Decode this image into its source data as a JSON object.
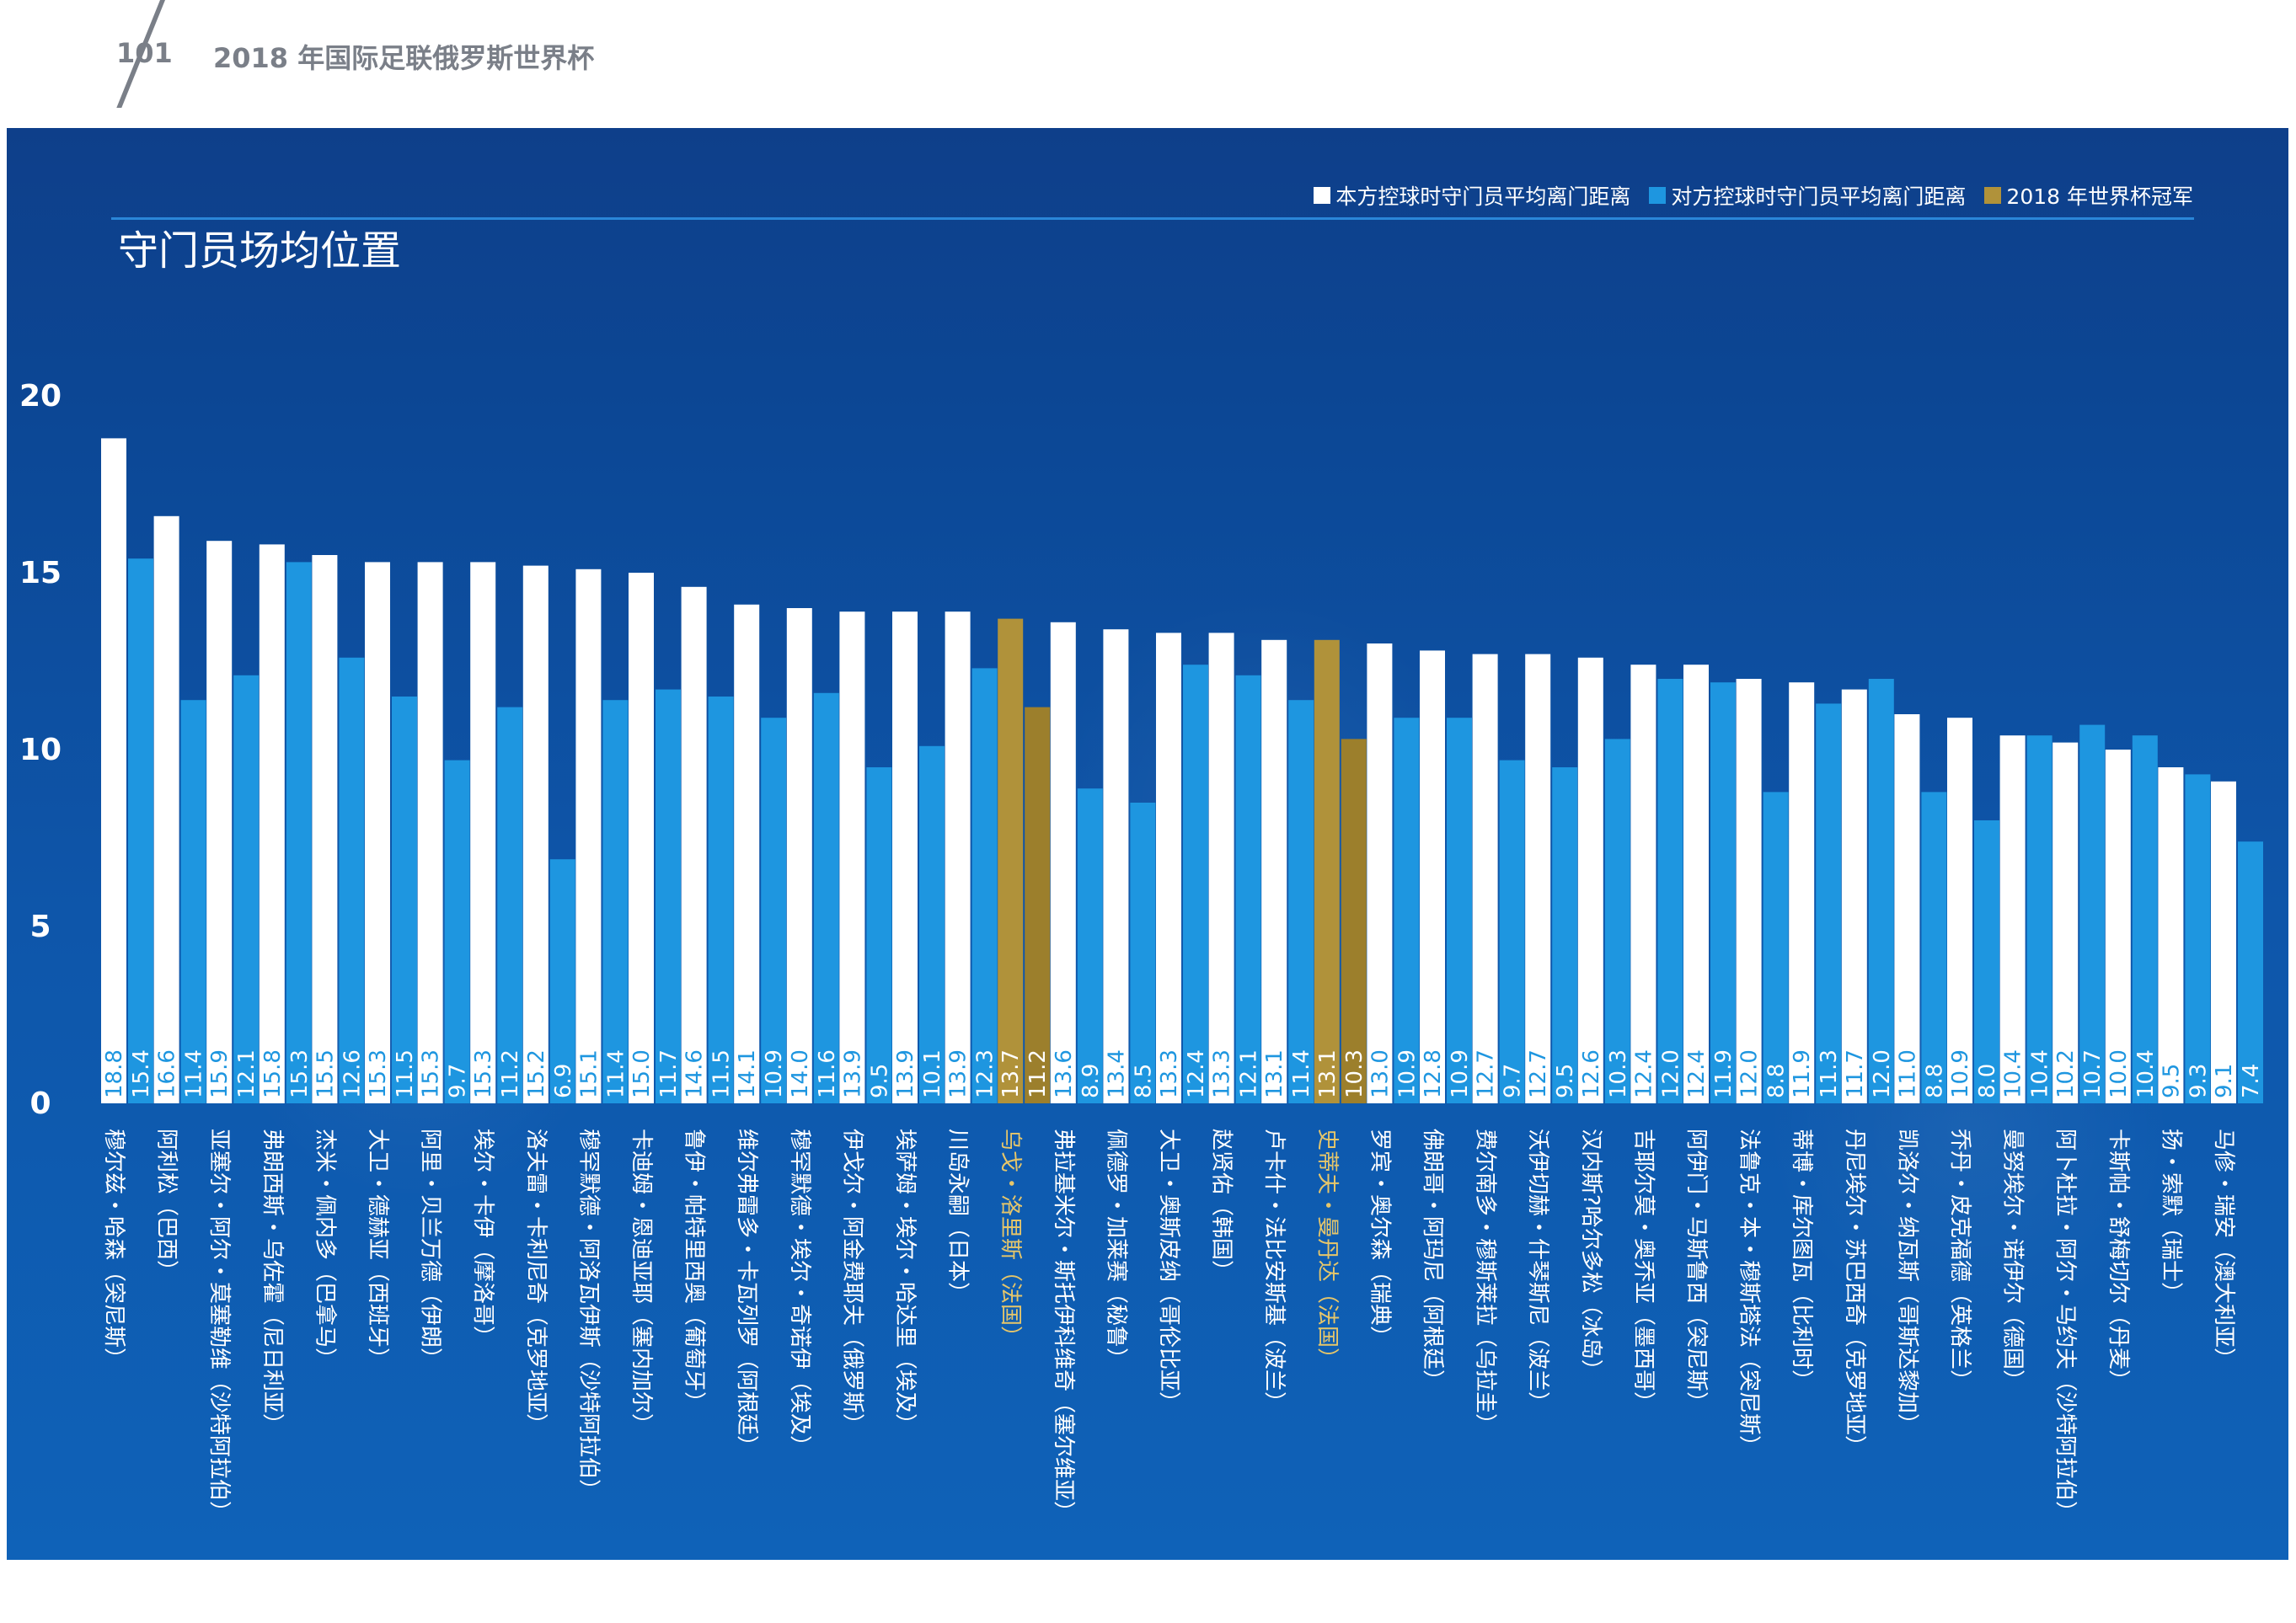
{
  "page": {
    "number": "101",
    "header_title": "2018 年国际足联俄罗斯世界杯"
  },
  "legend": [
    {
      "label": "本方控球时守门员平均离门距离",
      "color": "#ffffff"
    },
    {
      "label": "对方控球时守门员平均离门距离",
      "color": "#1e96e0"
    },
    {
      "label": "2018 年世界杯冠军",
      "color": "#b0923a"
    }
  ],
  "colors": {
    "own": "#ffffff",
    "opp": "#1e96e0",
    "champion": "#b0923a",
    "champion_dark": "#9c7f2c",
    "champion_label": "#e6c66a",
    "own_value_label": "#1e96e0",
    "opp_value_label": "#ffffff"
  },
  "chart_data": {
    "type": "bar",
    "title": "守门员场均位置",
    "ylim": [
      0,
      20
    ],
    "yticks": [
      0,
      5,
      10,
      15,
      20
    ],
    "series": [
      {
        "name": "本方控球时守门员平均离门距离",
        "values": [
          18.8,
          16.6,
          15.9,
          15.8,
          15.5,
          15.3,
          15.3,
          15.3,
          15.2,
          15.1,
          15.0,
          14.6,
          14.1,
          14.0,
          13.9,
          13.9,
          13.9,
          13.7,
          13.6,
          13.4,
          13.3,
          13.3,
          13.1,
          13.1,
          13.0,
          12.8,
          12.7,
          12.7,
          12.6,
          12.4,
          12.4,
          12.0,
          11.9,
          11.7,
          11.0,
          10.9,
          10.4,
          10.2,
          10.0,
          9.5,
          9.1
        ]
      },
      {
        "name": "对方控球时守门员平均离门距离",
        "values": [
          15.4,
          11.4,
          12.1,
          15.3,
          12.6,
          11.5,
          9.7,
          11.2,
          6.9,
          11.4,
          11.7,
          11.5,
          10.9,
          11.6,
          9.5,
          10.1,
          12.3,
          11.2,
          8.9,
          8.5,
          12.4,
          12.1,
          11.4,
          10.3,
          10.9,
          10.9,
          9.7,
          9.5,
          10.3,
          12.0,
          11.9,
          8.8,
          11.3,
          12.0,
          8.8,
          8.0,
          10.4,
          10.7,
          10.4,
          9.3,
          7.4
        ]
      }
    ],
    "own_labels": [
      "18.8",
      "16.6",
      "15.9",
      "15.8",
      "15.5",
      "15.3",
      "15.3",
      "15.3",
      "15.2",
      "15.1",
      "15.0",
      "14.6",
      "14.1",
      "14.0",
      "13.9",
      "13.9",
      "13.9",
      "13.7",
      "13.6",
      "13.4",
      "13.3",
      "13.3",
      "13.1",
      "13.1",
      "13.0",
      "12.8",
      "12.7",
      "12.7",
      "12.6",
      "12.4",
      "12.4",
      "12.0",
      "11.9",
      "11.7",
      "11.0",
      "10.9",
      "10.4",
      "10.2",
      "10.0",
      "9.5",
      "9.1"
    ],
    "opp_labels": [
      "15.4",
      "11.4",
      "12.1",
      "15.3",
      "12.6",
      "11.5",
      "9.7",
      "11.2",
      "6.9",
      "11.4",
      "11.7",
      "11.5",
      "10.9",
      "11.6",
      "9.5",
      "10.1",
      "12.3",
      "11.2",
      "8.9",
      "8.5",
      "12.4",
      "12.1",
      "11.4",
      "10.3",
      "10.9",
      "10.9",
      "9.7",
      "9.5",
      "10.3",
      "12.0",
      "11.9",
      "8.8",
      "11.3",
      "12.0",
      "8.8",
      "8.0",
      "10.4",
      "10.7",
      "10.4",
      "9.3",
      "7.4"
    ],
    "champion_flags": [
      false,
      false,
      false,
      false,
      false,
      false,
      false,
      false,
      false,
      false,
      false,
      false,
      false,
      false,
      false,
      false,
      false,
      true,
      false,
      false,
      false,
      false,
      false,
      true,
      false,
      false,
      false,
      false,
      false,
      false,
      false,
      false,
      false,
      false,
      false,
      false,
      false,
      false,
      false,
      false,
      false
    ],
    "categories": [
      "穆尔兹・哈森（突尼斯）",
      "阿利松（巴西）",
      "亚塞尔・阿尔・莫塞勒维（沙特阿拉伯）",
      "弗朗西斯・乌佐霍（尼日利亚）",
      "杰米・佩内多（巴拿马）",
      "大卫・德赫亚（西班牙）",
      "阿里・贝兰万德（伊朗）",
      "埃尔・卡伊（摩洛哥）",
      "洛夫雷・卡利尼奇（克罗地亚）",
      "穆罕默德・阿洛瓦伊斯（沙特阿拉伯）",
      "卡迪姆・恩迪亚耶（塞内加尔）",
      "鲁伊・帕特里西奥（葡萄牙）",
      "维尔弗雷多・卡瓦列罗（阿根廷）",
      "穆罕默德・埃尔・奇诺伊（埃及）",
      "伊戈尔・阿金费耶夫（俄罗斯）",
      "埃萨姆・埃尔・哈达里（埃及）",
      "川岛永嗣（日本）",
      "乌戈・洛里斯（法国）",
      "弗拉基米尔・斯托伊科维奇（塞尔维亚）",
      "佩德罗・加莱赛（秘鲁）",
      "大卫・奥斯皮纳（哥伦比亚）",
      "赵贤佑（韩国）",
      "卢卡什・法比安斯基（波兰）",
      "史蒂夫・曼丹达（法国）",
      "罗宾・奥尔森（瑞典）",
      "佛朗哥・阿玛尼（阿根廷）",
      "费尔南多・穆斯莱拉（乌拉圭）",
      "沃伊切赫・什琴斯尼（波兰）",
      "汉内斯?哈尔多松（冰岛）",
      "吉耶尔莫・奥乔亚（墨西哥）",
      "阿伊门・马斯鲁西（突尼斯）",
      "法鲁克・本・穆斯塔法（突尼斯）",
      "蒂博・库尔图瓦（比利时）",
      "丹尼埃尔・苏巴西奇（克罗地亚）",
      "凯洛尔・纳瓦斯（哥斯达黎加）",
      "乔丹・皮克福德（英格兰）",
      "曼努埃尔・诺伊尔（德国）",
      "阿卜杜拉・阿尔・马约夫（沙特阿拉伯）",
      "卡斯帕・舒梅切尔（丹麦）",
      "扬・索默（瑞士）",
      "马修・瑞安（澳大利亚）"
    ]
  }
}
